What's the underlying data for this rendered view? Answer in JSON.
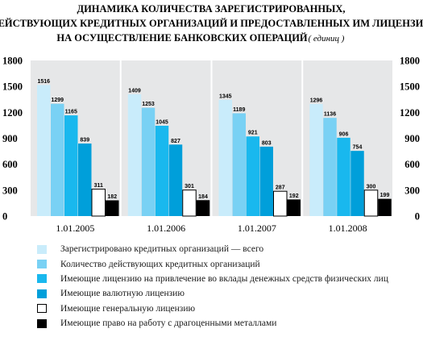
{
  "chart_data": {
    "type": "bar",
    "title_lines": [
      "ДИНАМИКА КОЛИЧЕСТВА ЗАРЕГИСТРИРОВАННЫХ,",
      "ДЕЙСТВУЮЩИХ КРЕДИТНЫХ ОРГАНИЗАЦИЙ И ПРЕДОСТАВЛЕННЫХ ИМ ЛИЦЕНЗИЙ",
      "НА ОСУЩЕСТВЛЕНИЕ БАНКОВСКИХ ОПЕРАЦИЙ"
    ],
    "title_suffix": "( единиц )",
    "categories": [
      "1.01.2005",
      "1.01.2006",
      "1.01.2007",
      "1.01.2008"
    ],
    "ylim": [
      0,
      1800
    ],
    "yticks": [
      0,
      300,
      600,
      900,
      1200,
      1500,
      1800
    ],
    "ytick_labels": [
      "0",
      "300",
      "600",
      "900",
      "1200",
      "1500",
      "1800"
    ],
    "grid": false,
    "legend_position": "bottom",
    "series": [
      {
        "name": "Зарегистрировано кредитных организаций — всего",
        "color": "#c9ecfb",
        "values": [
          1516,
          1409,
          1345,
          1296
        ]
      },
      {
        "name": "Количество действующих кредитных организаций",
        "color": "#79d1f4",
        "values": [
          1299,
          1253,
          1189,
          1136
        ]
      },
      {
        "name": "Имеющие лицензию на привлечение во вклады денежных средств физических лиц",
        "color": "#19b8ee",
        "values": [
          1165,
          1045,
          921,
          906
        ]
      },
      {
        "name": "Имеющие валютную лицензию",
        "color": "#009fda",
        "values": [
          839,
          827,
          803,
          754
        ]
      },
      {
        "name": "Имеющие генеральную лицензию",
        "color": "#ffffff",
        "values": [
          311,
          301,
          287,
          300
        ]
      },
      {
        "name": "Имеющие право на работу с драгоценными металлами",
        "color": "#000000",
        "values": [
          182,
          184,
          192,
          199
        ]
      }
    ]
  }
}
